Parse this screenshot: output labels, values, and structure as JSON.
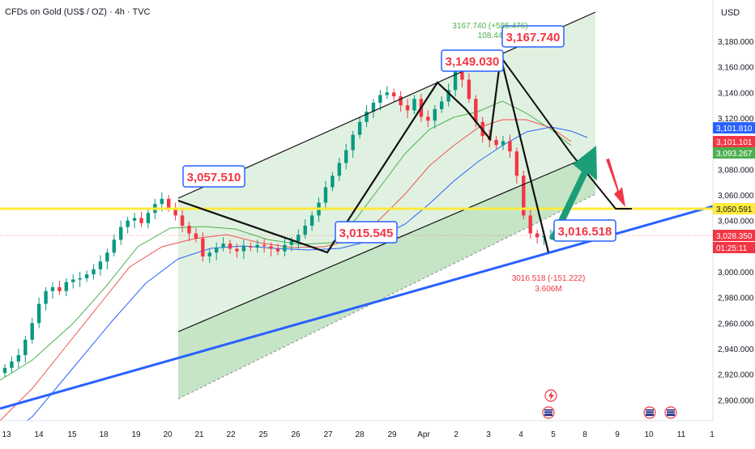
{
  "header": {
    "title": "CFDs on Gold (US$ / OZ) · 4h · TVC",
    "currency": "USD"
  },
  "colors": {
    "up": "#089981",
    "down": "#f23645",
    "channel_fill": "#c8e6c9",
    "support_line": "#2962ff",
    "resistance_line": "#ffeb3b",
    "label_border": "#2962ff",
    "label_text": "#f23645",
    "ma_fast": "#4caf50",
    "ma_mid": "#ef5350",
    "ma_slow": "#2962ff"
  },
  "chart_data": {
    "type": "candlestick",
    "title": "CFDs on Gold (US$ / OZ) · 4h · TVC",
    "y_axis": {
      "label": "USD",
      "range": [
        2890,
        3200
      ],
      "ticks": [
        2900,
        2920,
        2940,
        2960,
        2980,
        3000,
        3020,
        3040,
        3060,
        3080,
        3100,
        3120,
        3140,
        3160,
        3180
      ],
      "tick_labels": [
        "2,900.000",
        "2,920.000",
        "2,940.000",
        "2,960.000",
        "2,980.000",
        "3,000.000",
        "3,020.000",
        "3,040.000",
        "3,060.000",
        "3,080.000",
        "3,100.000",
        "3,120.000",
        "3,140.000",
        "3,160.000",
        "3,180.000"
      ]
    },
    "x_axis": {
      "tick_labels": [
        "13",
        "14",
        "15",
        "18",
        "19",
        "20",
        "21",
        "22",
        "25",
        "26",
        "27",
        "28",
        "29",
        "Apr",
        "2",
        "3",
        "4",
        "5",
        "8",
        "9",
        "10",
        "11",
        "1"
      ]
    },
    "price_tags": [
      {
        "label": "3,101.810",
        "value": 3101.81,
        "color": "#2962ff"
      },
      {
        "label": "3,101.101",
        "value": 3101.101,
        "color": "#f23645"
      },
      {
        "label": "3,093.267",
        "value": 3093.267,
        "color": "#4caf50"
      },
      {
        "label": "3,050.591",
        "value": 3050.591,
        "color": "#ffeb3b"
      },
      {
        "label": "3,028.350",
        "value": 3028.35,
        "color": "#f23645"
      },
      {
        "label": "01:25:11",
        "value": 3021.5,
        "color": "#f23645"
      }
    ],
    "annotations": [
      {
        "label": "3,057.510",
        "value": 3057.51
      },
      {
        "label": "3,015.545",
        "value": 3015.545
      },
      {
        "label": "3,149.030",
        "value": 3149.03
      },
      {
        "label": "3,167.740",
        "value": 3167.74
      },
      {
        "label": "3,016.518",
        "value": 3016.518
      }
    ],
    "notes": [
      {
        "text": "3167.740 (+585.476)",
        "color": "#4caf50"
      },
      {
        "text": "108.44",
        "color": "#4caf50"
      },
      {
        "text": "3016.518 (-151.222)",
        "color": "#f23645"
      },
      {
        "text": "3.606M",
        "color": "#f23645"
      }
    ],
    "close_series": [
      2925,
      2930,
      2935,
      2947,
      2960,
      2975,
      2985,
      2988,
      2985,
      2992,
      2994,
      2995,
      2998,
      3002,
      3008,
      3015,
      3025,
      3035,
      3040,
      3042,
      3038,
      3046,
      3053,
      3057,
      3050,
      3044,
      3036,
      3030,
      3026,
      3012,
      3015,
      3019,
      3022,
      3018,
      3016,
      3020,
      3019,
      3021,
      3020,
      3018,
      3016,
      3021,
      3024,
      3029,
      3036,
      3044,
      3054,
      3066,
      3075,
      3085,
      3095,
      3107,
      3117,
      3125,
      3132,
      3138,
      3140,
      3137,
      3130,
      3126,
      3135,
      3121,
      3118,
      3127,
      3133,
      3142,
      3162,
      3150,
      3135,
      3117,
      3106,
      3103,
      3099,
      3102,
      3094,
      3075,
      3044,
      3030,
      3027,
      3028,
      3028
    ]
  }
}
